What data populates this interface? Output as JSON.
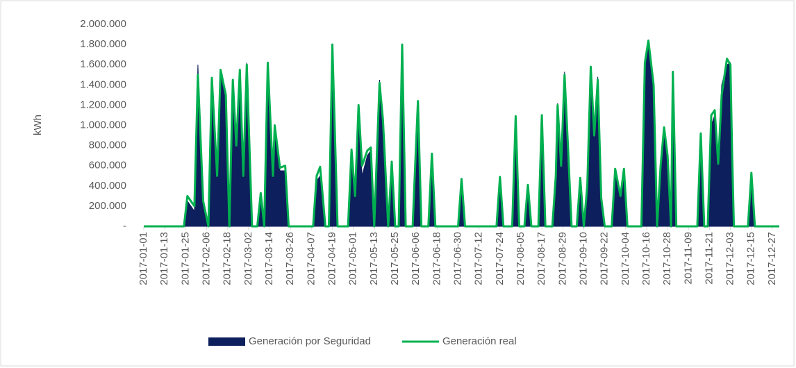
{
  "chart_data": {
    "type": "line",
    "ylabel": "kWh",
    "x": [
      "2017-01-01",
      "2017-01-24",
      "2017-01-26",
      "2017-01-30",
      "2017-02-01",
      "2017-02-04",
      "2017-02-07",
      "2017-02-09",
      "2017-02-12",
      "2017-02-14",
      "2017-02-17",
      "2017-02-19",
      "2017-02-21",
      "2017-02-23",
      "2017-02-25",
      "2017-02-27",
      "2017-03-01",
      "2017-03-04",
      "2017-03-07",
      "2017-03-09",
      "2017-03-11",
      "2017-03-13",
      "2017-03-16",
      "2017-03-17",
      "2017-03-20",
      "2017-03-23",
      "2017-03-25",
      "2017-04-08",
      "2017-04-10",
      "2017-04-12",
      "2017-04-15",
      "2017-04-17",
      "2017-04-19",
      "2017-04-22",
      "2017-04-28",
      "2017-04-30",
      "2017-05-02",
      "2017-05-04",
      "2017-05-06",
      "2017-05-09",
      "2017-05-11",
      "2017-05-13",
      "2017-05-16",
      "2017-05-18",
      "2017-05-21",
      "2017-05-23",
      "2017-05-25",
      "2017-05-27",
      "2017-05-29",
      "2017-05-31",
      "2017-06-04",
      "2017-06-05",
      "2017-06-07",
      "2017-06-09",
      "2017-06-13",
      "2017-06-15",
      "2017-06-17",
      "2017-06-30",
      "2017-07-02",
      "2017-07-04",
      "2017-07-22",
      "2017-07-24",
      "2017-07-26",
      "2017-07-31",
      "2017-08-02",
      "2017-08-04",
      "2017-08-07",
      "2017-08-09",
      "2017-08-11",
      "2017-08-15",
      "2017-08-17",
      "2017-08-19",
      "2017-08-23",
      "2017-08-25",
      "2017-08-26",
      "2017-08-28",
      "2017-08-30",
      "2017-09-01",
      "2017-09-03",
      "2017-09-06",
      "2017-09-08",
      "2017-09-10",
      "2017-09-12",
      "2017-09-14",
      "2017-09-16",
      "2017-09-18",
      "2017-09-20",
      "2017-09-22",
      "2017-09-26",
      "2017-09-28",
      "2017-10-01",
      "2017-10-03",
      "2017-10-05",
      "2017-10-13",
      "2017-10-15",
      "2017-10-17",
      "2017-10-20",
      "2017-10-22",
      "2017-10-24",
      "2017-10-26",
      "2017-10-28",
      "2017-10-30",
      "2017-10-31",
      "2017-11-02",
      "2017-11-14",
      "2017-11-16",
      "2017-11-18",
      "2017-11-20",
      "2017-11-22",
      "2017-11-24",
      "2017-11-26",
      "2017-11-28",
      "2017-12-01",
      "2017-12-03",
      "2017-12-04",
      "2017-12-05",
      "2017-12-13",
      "2017-12-15",
      "2017-12-17",
      "2017-12-31"
    ],
    "series": [
      {
        "name": "Generación por Seguridad",
        "color": "#0d1f5c",
        "fill": true,
        "values": [
          0,
          0,
          250000,
          150000,
          1600000,
          250000,
          0,
          1400000,
          450000,
          1500000,
          1300000,
          0,
          1400000,
          750000,
          1500000,
          400000,
          1620000,
          0,
          0,
          300000,
          0,
          1600000,
          500000,
          1000000,
          550000,
          550000,
          0,
          0,
          450000,
          500000,
          0,
          0,
          1800000,
          0,
          0,
          700000,
          300000,
          1200000,
          500000,
          700000,
          750000,
          0,
          1450000,
          1050000,
          0,
          600000,
          0,
          0,
          1800000,
          0,
          0,
          400000,
          1200000,
          0,
          0,
          700000,
          0,
          0,
          450000,
          0,
          0,
          480000,
          0,
          0,
          1080000,
          0,
          0,
          400000,
          0,
          0,
          1080000,
          0,
          0,
          450000,
          1220000,
          550000,
          1530000,
          700000,
          0,
          0,
          450000,
          0,
          400000,
          1500000,
          1000000,
          1480000,
          250000,
          0,
          0,
          550000,
          300000,
          550000,
          0,
          0,
          1650000,
          1800000,
          1400000,
          0,
          600000,
          950000,
          650000,
          0,
          1500000,
          0,
          0,
          900000,
          0,
          0,
          1000000,
          1100000,
          600000,
          1400000,
          1600000,
          1620000,
          700000,
          0,
          0,
          500000,
          0,
          0
        ]
      },
      {
        "name": "Generación real",
        "color": "#00b050",
        "fill": false,
        "values": [
          0,
          0,
          300000,
          200000,
          1500000,
          250000,
          0,
          1470000,
          500000,
          1550000,
          1300000,
          0,
          1450000,
          800000,
          1550000,
          500000,
          1600000,
          0,
          0,
          330000,
          0,
          1620000,
          500000,
          1000000,
          580000,
          600000,
          0,
          0,
          500000,
          590000,
          0,
          0,
          1800000,
          0,
          0,
          760000,
          300000,
          1200000,
          600000,
          750000,
          780000,
          0,
          1420000,
          1050000,
          0,
          640000,
          0,
          0,
          1800000,
          0,
          0,
          420000,
          1240000,
          0,
          0,
          720000,
          0,
          0,
          470000,
          0,
          0,
          490000,
          0,
          0,
          1090000,
          0,
          0,
          410000,
          0,
          0,
          1100000,
          0,
          0,
          500000,
          1200000,
          600000,
          1500000,
          780000,
          0,
          0,
          480000,
          0,
          400000,
          1580000,
          900000,
          1450000,
          280000,
          0,
          0,
          570000,
          300000,
          570000,
          0,
          0,
          1620000,
          1840000,
          1400000,
          0,
          600000,
          980000,
          700000,
          0,
          1530000,
          0,
          0,
          920000,
          0,
          0,
          1100000,
          1150000,
          620000,
          1300000,
          1660000,
          1600000,
          700000,
          0,
          0,
          530000,
          0,
          0
        ]
      }
    ],
    "xlim": [
      "2017-01-01",
      "2017-12-31"
    ],
    "xticks": [
      "2017-01-01",
      "2017-01-13",
      "2017-01-25",
      "2017-02-06",
      "2017-02-18",
      "2017-03-02",
      "2017-03-14",
      "2017-03-26",
      "2017-04-07",
      "2017-04-19",
      "2017-05-01",
      "2017-05-13",
      "2017-05-25",
      "2017-06-06",
      "2017-06-18",
      "2017-06-30",
      "2017-07-12",
      "2017-07-24",
      "2017-08-05",
      "2017-08-17",
      "2017-08-29",
      "2017-09-10",
      "2017-09-22",
      "2017-10-04",
      "2017-10-16",
      "2017-10-28",
      "2017-11-09",
      "2017-11-21",
      "2017-12-03",
      "2017-12-15",
      "2017-12-27"
    ],
    "ylim": [
      0,
      2000000
    ],
    "yticks": [
      {
        "value": 0,
        "label": "-"
      },
      {
        "value": 200000,
        "label": "200.000"
      },
      {
        "value": 400000,
        "label": "400.000"
      },
      {
        "value": 600000,
        "label": "600.000"
      },
      {
        "value": 800000,
        "label": "800.000"
      },
      {
        "value": 1000000,
        "label": "1.000.000"
      },
      {
        "value": 1200000,
        "label": "1.200.000"
      },
      {
        "value": 1400000,
        "label": "1.400.000"
      },
      {
        "value": 1600000,
        "label": "1.600.000"
      },
      {
        "value": 1800000,
        "label": "1.800.000"
      },
      {
        "value": 2000000,
        "label": "2.000.000"
      }
    ],
    "grid": false,
    "legend": "bottom"
  }
}
